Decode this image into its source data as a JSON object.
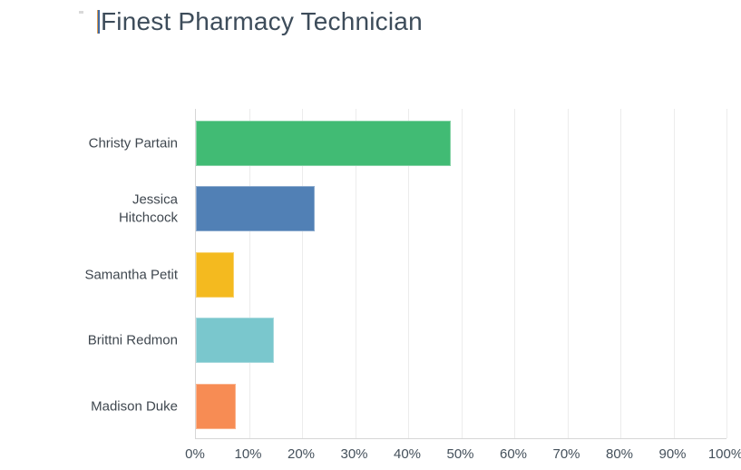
{
  "header": {
    "title": "Finest Pharmacy Technician",
    "title_color": "#3d4c5a"
  },
  "chart_data": {
    "type": "bar",
    "orientation": "horizontal",
    "title": "Finest Pharmacy Technician",
    "categories": [
      "Christy Partain",
      "Jessica\nHitchcock",
      "Samantha Petit",
      "Brittni Redmon",
      "Madison Duke"
    ],
    "values": [
      48,
      22.4,
      7.2,
      14.7,
      7.5
    ],
    "unit": "%",
    "series_colors": [
      "#41bb74",
      "#5180b5",
      "#f4ba1f",
      "#7ac7cd",
      "#f78c54"
    ],
    "xlabel": "",
    "ylabel": "",
    "xlim": [
      0,
      100
    ],
    "x_ticks": [
      "0%",
      "10%",
      "20%",
      "30%",
      "40%",
      "50%",
      "60%",
      "70%",
      "80%",
      "90%",
      "100%"
    ],
    "grid": "vertical",
    "legend": "none"
  },
  "colors": {
    "gridline": "#ececec",
    "axis_line": "#d6d6d6",
    "category_text": "#3f474f",
    "tick_text": "#44505b"
  }
}
